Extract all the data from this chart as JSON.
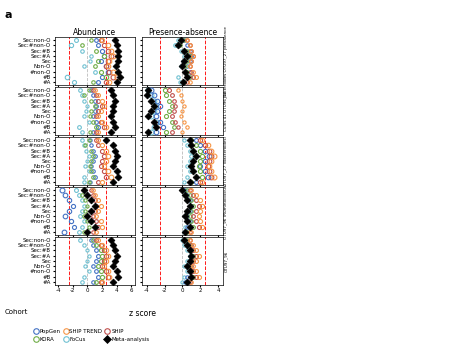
{
  "panel_title": "a",
  "subplot_titles": [
    "Abundance",
    "Presence-absence"
  ],
  "row_labels": [
    "Sec:non-O",
    "Sec:#non-O",
    "Sec:#B",
    "Sec:#A",
    "Sec",
    "Non-O",
    "#non-O",
    "#B",
    "#A"
  ],
  "right_axis_labels": [
    "Bacteroides OTU97_27 prevalence",
    "Cultis 41 OTU96_13",
    "OTU97_27 (Bacteroides)",
    "OTU97_96 (Ruminococcus)",
    "OTU97_96 in..."
  ],
  "xlim_abundance": [
    -4.5,
    6.5
  ],
  "xlim_presence": [
    -4.5,
    4.5
  ],
  "xticks_abundance": [
    -4,
    -2,
    0,
    2,
    4,
    6
  ],
  "xticks_presence": [
    -4,
    -2,
    0,
    2,
    4
  ],
  "xlabel": "z score",
  "cohort_colors": {
    "PopGen": "#4472c4",
    "FoCus": "#70c1d2",
    "KORA": "#70ad47",
    "SHIP": "#c0504d",
    "SHIP_TREND": "#f79646",
    "Meta": "#000000"
  },
  "background_color": "#ffffff"
}
